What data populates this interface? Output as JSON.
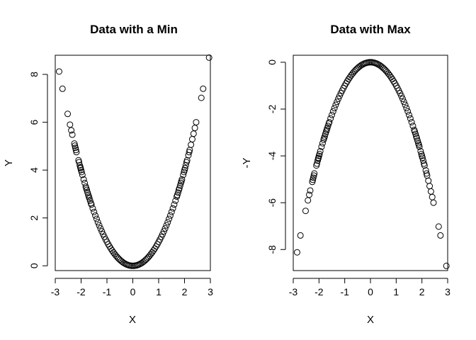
{
  "chart_data": [
    {
      "type": "scatter",
      "title": "Data with a Min",
      "xlabel": "X",
      "ylabel": "Y",
      "xlim": [
        -3.0,
        3.0
      ],
      "ylim": [
        -0.2,
        8.8
      ],
      "xticks": [
        -3,
        -2,
        -1,
        0,
        1,
        2,
        3
      ],
      "yticks": [
        0,
        2,
        4,
        6,
        8
      ],
      "grid": false,
      "marker": "open-circle",
      "relation": "y = x^2",
      "x": [
        -2.85,
        -2.72,
        -2.52,
        -2.43,
        -2.38,
        -2.34,
        -2.26,
        -2.24,
        -2.22,
        -2.2,
        -2.18,
        -2.1,
        -2.08,
        -2.05,
        -2.03,
        -2.02,
        -2.0,
        -1.98,
        -1.95,
        -1.9,
        -1.86,
        -1.82,
        -1.8,
        -1.78,
        -1.75,
        -1.72,
        -1.7,
        -1.68,
        -1.65,
        -1.62,
        -1.6,
        -1.55,
        -1.5,
        -1.45,
        -1.4,
        -1.35,
        -1.3,
        -1.25,
        -1.2,
        -1.15,
        -1.1,
        -1.05,
        -1.0,
        -0.95,
        -0.9,
        -0.85,
        -0.8,
        -0.75,
        -0.7,
        -0.65,
        -0.6,
        -0.55,
        -0.5,
        -0.45,
        -0.4,
        -0.35,
        -0.3,
        -0.25,
        -0.2,
        -0.15,
        -0.1,
        -0.05,
        0.0,
        0.05,
        0.1,
        0.15,
        0.2,
        0.25,
        0.3,
        0.35,
        0.4,
        0.45,
        0.5,
        0.55,
        0.6,
        0.65,
        0.7,
        0.75,
        0.8,
        0.85,
        0.9,
        0.95,
        1.0,
        1.05,
        1.1,
        1.15,
        1.2,
        1.25,
        1.3,
        1.35,
        1.4,
        1.45,
        1.5,
        1.55,
        1.6,
        1.65,
        1.7,
        1.72,
        1.75,
        1.78,
        1.8,
        1.83,
        1.86,
        1.88,
        1.9,
        1.95,
        1.98,
        2.0,
        2.02,
        2.05,
        2.08,
        2.1,
        2.15,
        2.18,
        2.2,
        2.25,
        2.3,
        2.35,
        2.4,
        2.45,
        2.65,
        2.72,
        2.95
      ],
      "y": [
        8.12,
        7.4,
        6.35,
        5.9,
        5.66,
        5.48,
        5.11,
        5.02,
        4.93,
        4.84,
        4.75,
        4.41,
        4.33,
        4.2,
        4.12,
        4.08,
        4.0,
        3.92,
        3.8,
        3.61,
        3.46,
        3.31,
        3.24,
        3.17,
        3.06,
        2.96,
        2.89,
        2.82,
        2.72,
        2.62,
        2.56,
        2.4,
        2.25,
        2.1,
        1.96,
        1.82,
        1.69,
        1.56,
        1.44,
        1.32,
        1.21,
        1.1,
        1.0,
        0.9,
        0.81,
        0.72,
        0.64,
        0.56,
        0.49,
        0.42,
        0.36,
        0.3,
        0.25,
        0.2,
        0.16,
        0.12,
        0.09,
        0.06,
        0.04,
        0.02,
        0.01,
        0.0,
        0.0,
        0.0,
        0.01,
        0.02,
        0.04,
        0.06,
        0.09,
        0.12,
        0.16,
        0.2,
        0.25,
        0.3,
        0.36,
        0.42,
        0.49,
        0.56,
        0.64,
        0.72,
        0.81,
        0.9,
        1.0,
        1.1,
        1.21,
        1.32,
        1.44,
        1.56,
        1.69,
        1.82,
        1.96,
        2.1,
        2.25,
        2.4,
        2.56,
        2.72,
        2.89,
        2.96,
        3.06,
        3.17,
        3.24,
        3.35,
        3.46,
        3.53,
        3.61,
        3.8,
        3.92,
        4.0,
        4.08,
        4.2,
        4.33,
        4.41,
        4.62,
        4.75,
        4.84,
        5.06,
        5.29,
        5.52,
        5.76,
        6.0,
        7.02,
        7.4,
        8.7
      ]
    },
    {
      "type": "scatter",
      "title": "Data with Max",
      "xlabel": "X",
      "ylabel": "-Y",
      "xlim": [
        -3.0,
        3.0
      ],
      "ylim": [
        -8.9,
        0.3
      ],
      "xticks": [
        -3,
        -2,
        -1,
        0,
        1,
        2,
        3
      ],
      "yticks": [
        0,
        -2,
        -4,
        -6,
        -8
      ],
      "grid": false,
      "marker": "open-circle",
      "relation": "y = -x^2"
    }
  ]
}
